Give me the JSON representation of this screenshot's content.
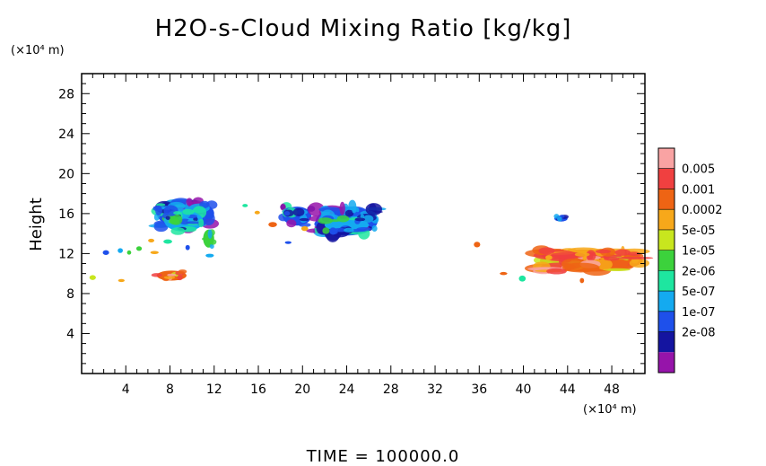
{
  "chart_data": {
    "type": "heatmap",
    "title": "H2O-s-Cloud Mixing Ratio [kg/kg]",
    "xlabel": "",
    "ylabel": "Height",
    "x_unit": "(×10⁴ m)",
    "y_unit": "(×10⁴ m)",
    "xlim": [
      0,
      51
    ],
    "ylim": [
      0,
      30
    ],
    "xticks": [
      4,
      8,
      12,
      16,
      20,
      24,
      28,
      32,
      36,
      40,
      44,
      48
    ],
    "yticks": [
      4,
      8,
      12,
      16,
      20,
      24,
      28
    ],
    "colorbar": {
      "labels": [
        "0.005",
        "0.001",
        "0.0002",
        "5e-05",
        "1e-05",
        "2e-06",
        "5e-07",
        "1e-07",
        "2e-08"
      ],
      "colors": [
        "#f9a3a3",
        "#f04040",
        "#ee6414",
        "#f7a81a",
        "#c8e61e",
        "#3cd23c",
        "#1ee6a0",
        "#14aaf0",
        "#1e50eb",
        "#1414a0",
        "#9614aa"
      ]
    },
    "cloud_regions": [
      {
        "x": [
          6.8,
          12
        ],
        "y": [
          14.6,
          17.4
        ],
        "level": "1e-07"
      },
      {
        "x": [
          7.5,
          11
        ],
        "y": [
          14.2,
          16.3
        ],
        "level": "5e-07"
      },
      {
        "x": [
          6.8,
          9.5
        ],
        "y": [
          9.3,
          10.3
        ],
        "level": "0.001"
      },
      {
        "x": [
          11,
          12
        ],
        "y": [
          12.6,
          14.4
        ],
        "level": "1e-05"
      },
      {
        "x": [
          18.2,
          20.8
        ],
        "y": [
          14.8,
          16.7
        ],
        "level": "1e-07"
      },
      {
        "x": [
          21.2,
          26.8
        ],
        "y": [
          13.8,
          16.7
        ],
        "level": "1e-07"
      },
      {
        "x": [
          22,
          26
        ],
        "y": [
          14.2,
          15.5
        ],
        "level": "5e-07"
      },
      {
        "x": [
          41.5,
          50.8
        ],
        "y": [
          10.2,
          12.4
        ],
        "level": "0.001"
      },
      {
        "x": [
          42.8,
          44
        ],
        "y": [
          15.2,
          15.8
        ],
        "level": "1e-07"
      }
    ]
  },
  "footer": {
    "time_label": "TIME = 100000.0"
  }
}
